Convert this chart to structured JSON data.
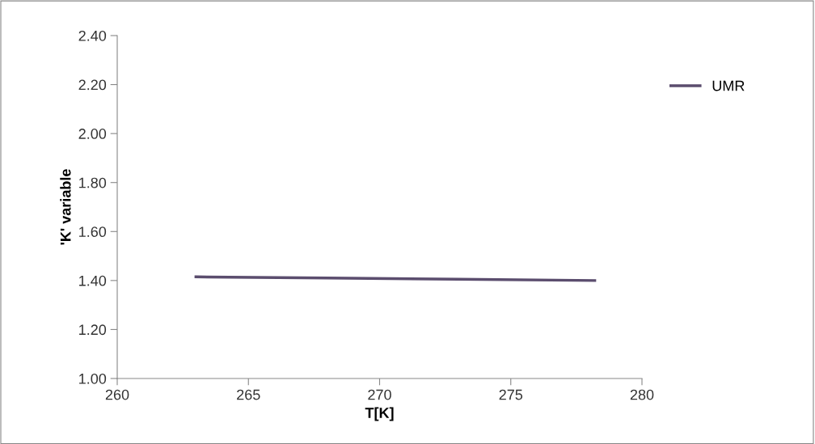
{
  "chart_data": {
    "type": "line",
    "xlabel": "T[K]",
    "ylabel": "'K' variable",
    "series": [
      {
        "name": "UMR",
        "color": "#5b4d6e",
        "x": [
          263.0,
          268.0,
          273.0,
          278.2
        ],
        "values": [
          1.415,
          1.41,
          1.405,
          1.4
        ]
      }
    ],
    "xlim": [
      260,
      280
    ],
    "xticks": [
      260,
      265,
      270,
      275,
      280
    ],
    "ylim": [
      1.0,
      2.4
    ],
    "yticks": [
      {
        "value": 1.0,
        "label": "1.00"
      },
      {
        "value": 1.2,
        "label": "1.20"
      },
      {
        "value": 1.4,
        "label": "1.40"
      },
      {
        "value": 1.6,
        "label": "1.60"
      },
      {
        "value": 1.8,
        "label": "1.80"
      },
      {
        "value": 2.0,
        "label": "2.00"
      },
      {
        "value": 2.2,
        "label": "2.20"
      },
      {
        "value": 2.4,
        "label": "2.40"
      }
    ],
    "grid": false,
    "legend": "right",
    "marker": "none",
    "line_style": "solid"
  }
}
